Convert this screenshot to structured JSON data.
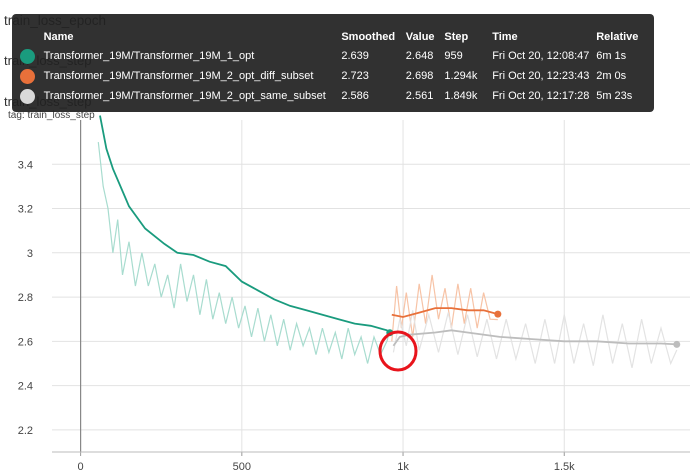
{
  "background_labels": {
    "epoch": "train_loss_epoch",
    "step1": "train_loss_step",
    "step2": "train_loss_step",
    "tag": "tag: train_loss_step"
  },
  "tooltip": {
    "columns": [
      "Name",
      "Smoothed",
      "Value",
      "Step",
      "Time",
      "Relative"
    ],
    "rows": [
      {
        "color": "#1a9b7e",
        "name": "Transformer_19M/Transformer_19M_1_opt",
        "smoothed": "2.639",
        "value": "2.648",
        "step": "959",
        "time": "Fri Oct 20, 12:08:47",
        "relative": "6m 1s"
      },
      {
        "color": "#e8703a",
        "name": "Transformer_19M/Transformer_19M_2_opt_diff_subset",
        "smoothed": "2.723",
        "value": "2.698",
        "step": "1.294k",
        "time": "Fri Oct 20, 12:23:43",
        "relative": "2m 0s"
      },
      {
        "color": "#d9d9d9",
        "name": "Transformer_19M/Transformer_19M_2_opt_same_subset",
        "smoothed": "2.586",
        "value": "2.561",
        "step": "1.849k",
        "time": "Fri Oct 20, 12:17:28",
        "relative": "5m 23s"
      }
    ]
  },
  "chart_data": {
    "type": "line",
    "x_ticks": [
      "0",
      "500",
      "1k",
      "1.5k"
    ],
    "x_tick_values": [
      0,
      500,
      1000,
      1500
    ],
    "y_ticks": [
      "2.2",
      "2.4",
      "2.6",
      "2.8",
      "3",
      "3.2",
      "3.4"
    ],
    "y_tick_values": [
      2.2,
      2.4,
      2.6,
      2.8,
      3.0,
      3.2,
      3.4
    ],
    "xlim": [
      -250,
      1890
    ],
    "ylim": [
      2.1,
      3.6
    ],
    "grid": true,
    "annotation": "red circle at step ~980, loss ~2.6",
    "series": [
      {
        "name": "Transformer_19M/Transformer_19M_1_opt",
        "color": "#1a9b7e",
        "smoothed": [
          [
            60,
            3.62
          ],
          [
            80,
            3.47
          ],
          [
            100,
            3.38
          ],
          [
            150,
            3.21
          ],
          [
            200,
            3.11
          ],
          [
            260,
            3.04
          ],
          [
            300,
            3.0
          ],
          [
            350,
            2.99
          ],
          [
            400,
            2.96
          ],
          [
            450,
            2.94
          ],
          [
            500,
            2.87
          ],
          [
            550,
            2.83
          ],
          [
            600,
            2.79
          ],
          [
            650,
            2.76
          ],
          [
            700,
            2.74
          ],
          [
            750,
            2.72
          ],
          [
            800,
            2.7
          ],
          [
            850,
            2.68
          ],
          [
            900,
            2.67
          ],
          [
            950,
            2.65
          ],
          [
            959,
            2.639
          ]
        ],
        "raw": [
          [
            55,
            3.5
          ],
          [
            70,
            3.3
          ],
          [
            85,
            3.2
          ],
          [
            100,
            3.0
          ],
          [
            115,
            3.15
          ],
          [
            130,
            2.9
          ],
          [
            150,
            3.05
          ],
          [
            170,
            2.85
          ],
          [
            190,
            3.0
          ],
          [
            210,
            2.85
          ],
          [
            230,
            2.95
          ],
          [
            250,
            2.8
          ],
          [
            270,
            2.9
          ],
          [
            290,
            2.75
          ],
          [
            310,
            2.95
          ],
          [
            330,
            2.78
          ],
          [
            350,
            2.9
          ],
          [
            370,
            2.72
          ],
          [
            390,
            2.88
          ],
          [
            410,
            2.7
          ],
          [
            430,
            2.82
          ],
          [
            450,
            2.68
          ],
          [
            470,
            2.8
          ],
          [
            490,
            2.66
          ],
          [
            510,
            2.76
          ],
          [
            530,
            2.62
          ],
          [
            550,
            2.75
          ],
          [
            570,
            2.6
          ],
          [
            590,
            2.72
          ],
          [
            610,
            2.58
          ],
          [
            630,
            2.7
          ],
          [
            650,
            2.56
          ],
          [
            670,
            2.68
          ],
          [
            690,
            2.58
          ],
          [
            710,
            2.66
          ],
          [
            730,
            2.54
          ],
          [
            750,
            2.66
          ],
          [
            770,
            2.55
          ],
          [
            790,
            2.64
          ],
          [
            810,
            2.52
          ],
          [
            830,
            2.66
          ],
          [
            850,
            2.54
          ],
          [
            870,
            2.62
          ],
          [
            890,
            2.5
          ],
          [
            910,
            2.62
          ],
          [
            930,
            2.54
          ],
          [
            950,
            2.6
          ],
          [
            959,
            2.648
          ]
        ]
      },
      {
        "name": "Transformer_19M/Transformer_19M_2_opt_diff_subset",
        "color": "#e8703a",
        "smoothed": [
          [
            965,
            2.72
          ],
          [
            1000,
            2.71
          ],
          [
            1050,
            2.73
          ],
          [
            1100,
            2.75
          ],
          [
            1150,
            2.75
          ],
          [
            1200,
            2.74
          ],
          [
            1250,
            2.74
          ],
          [
            1294,
            2.723
          ]
        ],
        "raw": [
          [
            965,
            2.6
          ],
          [
            980,
            2.85
          ],
          [
            995,
            2.66
          ],
          [
            1010,
            2.82
          ],
          [
            1030,
            2.62
          ],
          [
            1050,
            2.86
          ],
          [
            1070,
            2.68
          ],
          [
            1090,
            2.9
          ],
          [
            1110,
            2.7
          ],
          [
            1130,
            2.84
          ],
          [
            1150,
            2.66
          ],
          [
            1170,
            2.86
          ],
          [
            1190,
            2.68
          ],
          [
            1210,
            2.84
          ],
          [
            1230,
            2.66
          ],
          [
            1250,
            2.82
          ],
          [
            1270,
            2.7
          ],
          [
            1294,
            2.698
          ]
        ]
      },
      {
        "name": "Transformer_19M/Transformer_19M_2_opt_same_subset",
        "color": "#bdbdbd",
        "smoothed": [
          [
            970,
            2.58
          ],
          [
            990,
            2.62
          ],
          [
            1020,
            2.63
          ],
          [
            1100,
            2.64
          ],
          [
            1150,
            2.65
          ],
          [
            1200,
            2.64
          ],
          [
            1300,
            2.62
          ],
          [
            1400,
            2.61
          ],
          [
            1500,
            2.6
          ],
          [
            1600,
            2.6
          ],
          [
            1700,
            2.59
          ],
          [
            1800,
            2.59
          ],
          [
            1849,
            2.586
          ]
        ],
        "raw": [
          [
            970,
            2.55
          ],
          [
            990,
            2.7
          ],
          [
            1010,
            2.58
          ],
          [
            1030,
            2.74
          ],
          [
            1050,
            2.56
          ],
          [
            1080,
            2.72
          ],
          [
            1110,
            2.55
          ],
          [
            1140,
            2.73
          ],
          [
            1170,
            2.54
          ],
          [
            1200,
            2.72
          ],
          [
            1230,
            2.53
          ],
          [
            1260,
            2.7
          ],
          [
            1290,
            2.52
          ],
          [
            1320,
            2.7
          ],
          [
            1350,
            2.52
          ],
          [
            1380,
            2.68
          ],
          [
            1410,
            2.5
          ],
          [
            1440,
            2.7
          ],
          [
            1470,
            2.5
          ],
          [
            1500,
            2.72
          ],
          [
            1530,
            2.5
          ],
          [
            1560,
            2.68
          ],
          [
            1590,
            2.49
          ],
          [
            1620,
            2.72
          ],
          [
            1650,
            2.5
          ],
          [
            1680,
            2.68
          ],
          [
            1710,
            2.48
          ],
          [
            1740,
            2.7
          ],
          [
            1770,
            2.5
          ],
          [
            1800,
            2.66
          ],
          [
            1830,
            2.5
          ],
          [
            1849,
            2.561
          ]
        ]
      }
    ]
  }
}
